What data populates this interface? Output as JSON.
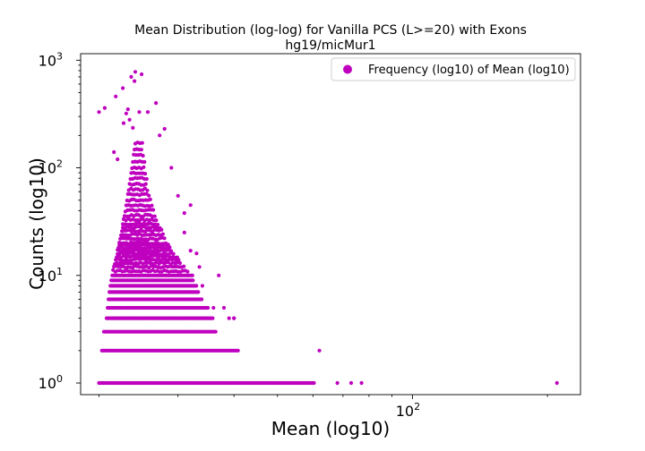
{
  "chart_data": {
    "type": "scatter",
    "title": "Mean Distribution (log-log) for Vanilla PCS (L>=20) with Exons",
    "subtitle": "hg19/micMur1",
    "xlabel": "Mean (log10)",
    "ylabel": "Counts (log10)",
    "x_scale": "log",
    "y_scale": "log",
    "xlim": [
      18.2,
      237
    ],
    "ylim": [
      0.78,
      1150
    ],
    "x_ticks": [
      {
        "value": 100,
        "base": "10",
        "exp": "2"
      }
    ],
    "y_ticks": [
      {
        "value": 1,
        "base": "10",
        "exp": "0"
      },
      {
        "value": 10,
        "base": "10",
        "exp": "1"
      },
      {
        "value": 100,
        "base": "10",
        "exp": "2"
      },
      {
        "value": 1000,
        "base": "10",
        "exp": "3"
      }
    ],
    "legend": {
      "label": "Frequency (log10) of Mean (log10)",
      "placement": "top-right"
    },
    "color": "#bf00bf",
    "series": [
      {
        "name": "Frequency (log10) of Mean (log10)",
        "points": [
          [
            20.0,
            330
          ],
          [
            20.6,
            360
          ],
          [
            21.8,
            460
          ],
          [
            22.6,
            550
          ],
          [
            23.6,
            700
          ],
          [
            24.1,
            780
          ],
          [
            24.9,
            740
          ],
          [
            24.0,
            640
          ],
          [
            26.8,
            400
          ],
          [
            23.2,
            350
          ],
          [
            23.4,
            280
          ],
          [
            23.0,
            320
          ],
          [
            22.7,
            260
          ],
          [
            24.6,
            330
          ],
          [
            25.7,
            330
          ],
          [
            28.0,
            230
          ],
          [
            27.3,
            200
          ],
          [
            22.0,
            120
          ],
          [
            21.6,
            140
          ],
          [
            23.8,
            235
          ],
          [
            210.0,
            1
          ],
          [
            62.0,
            2
          ],
          [
            77.0,
            1
          ],
          [
            73.0,
            1
          ],
          [
            68.0,
            1
          ],
          [
            40.0,
            4
          ],
          [
            39.0,
            4
          ],
          [
            38.0,
            5
          ],
          [
            36.0,
            5
          ],
          [
            40.0,
            4
          ],
          [
            37.0,
            10
          ],
          [
            33.0,
            16
          ],
          [
            32.0,
            17
          ],
          [
            31.0,
            25
          ],
          [
            32.0,
            45
          ],
          [
            30.0,
            55
          ],
          [
            29.0,
            100
          ],
          [
            31.0,
            38
          ],
          [
            33.5,
            12
          ],
          [
            34.0,
            8
          ]
        ],
        "rows": [
          {
            "count": 1,
            "x_from": 20.0,
            "x_to": 60.5
          },
          {
            "count": 2,
            "x_from": 20.3,
            "x_to": 41.0
          },
          {
            "count": 3,
            "x_from": 20.5,
            "x_to": 36.5
          },
          {
            "count": 4,
            "x_from": 20.8,
            "x_to": 36.0
          },
          {
            "count": 5,
            "x_from": 20.9,
            "x_to": 35.0
          },
          {
            "count": 6,
            "x_from": 21.0,
            "x_to": 34.0
          },
          {
            "count": 7,
            "x_from": 21.1,
            "x_to": 33.5
          },
          {
            "count": 8,
            "x_from": 21.2,
            "x_to": 33.0
          },
          {
            "count": 9,
            "x_from": 21.3,
            "x_to": 32.5
          },
          {
            "count": 10,
            "x_from": 21.4,
            "x_to": 32.5
          },
          {
            "count": 11,
            "x_from": 21.5,
            "x_to": 31.8
          },
          {
            "count": 12,
            "x_from": 21.6,
            "x_to": 31.2
          },
          {
            "count": 13,
            "x_from": 21.7,
            "x_to": 30.6
          },
          {
            "count": 14,
            "x_from": 21.8,
            "x_to": 30.2
          },
          {
            "count": 15,
            "x_from": 21.9,
            "x_to": 29.9
          },
          {
            "count": 16,
            "x_from": 22.0,
            "x_to": 29.5
          },
          {
            "count": 17,
            "x_from": 22.0,
            "x_to": 29.2
          },
          {
            "count": 18,
            "x_from": 22.1,
            "x_to": 29.0
          },
          {
            "count": 19,
            "x_from": 22.2,
            "x_to": 28.7
          },
          {
            "count": 20,
            "x_from": 22.2,
            "x_to": 28.5
          },
          {
            "count": 22,
            "x_from": 22.3,
            "x_to": 28.2
          },
          {
            "count": 24,
            "x_from": 22.4,
            "x_to": 27.9
          },
          {
            "count": 26,
            "x_from": 22.5,
            "x_to": 27.6
          },
          {
            "count": 28,
            "x_from": 22.6,
            "x_to": 27.4
          },
          {
            "count": 30,
            "x_from": 22.6,
            "x_to": 27.2
          },
          {
            "count": 33,
            "x_from": 22.7,
            "x_to": 27.0
          },
          {
            "count": 36,
            "x_from": 22.8,
            "x_to": 26.8
          },
          {
            "count": 40,
            "x_from": 22.9,
            "x_to": 26.6
          },
          {
            "count": 45,
            "x_from": 23.0,
            "x_to": 26.4
          },
          {
            "count": 50,
            "x_from": 23.1,
            "x_to": 26.2
          },
          {
            "count": 56,
            "x_from": 23.2,
            "x_to": 26.0
          },
          {
            "count": 63,
            "x_from": 23.3,
            "x_to": 25.9
          },
          {
            "count": 70,
            "x_from": 23.4,
            "x_to": 25.7
          },
          {
            "count": 80,
            "x_from": 23.5,
            "x_to": 25.6
          },
          {
            "count": 90,
            "x_from": 23.6,
            "x_to": 25.5
          },
          {
            "count": 100,
            "x_from": 23.7,
            "x_to": 25.4
          },
          {
            "count": 115,
            "x_from": 23.8,
            "x_to": 25.3
          },
          {
            "count": 130,
            "x_from": 23.9,
            "x_to": 25.2
          },
          {
            "count": 150,
            "x_from": 24.0,
            "x_to": 25.1
          },
          {
            "count": 170,
            "x_from": 24.1,
            "x_to": 25.0
          }
        ]
      }
    ]
  }
}
